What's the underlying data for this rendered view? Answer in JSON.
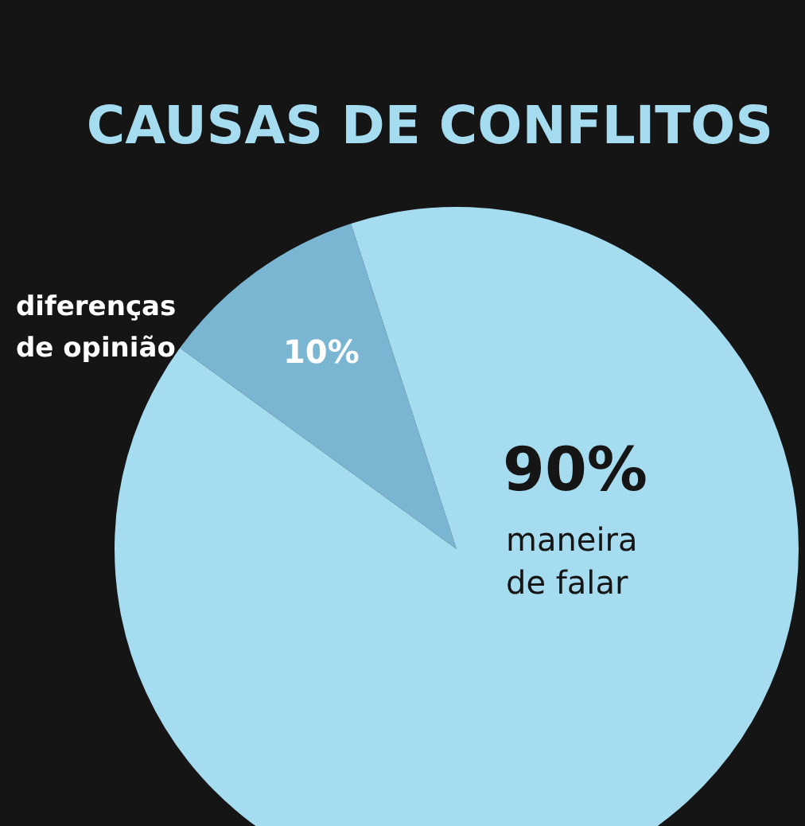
{
  "chart_data": {
    "type": "pie",
    "title": "CAUSAS DE CONFLITOS",
    "categories": [
      "diferenças de opinião",
      "maneira de falar"
    ],
    "values": [
      10,
      90
    ],
    "colors": [
      "#7ab6d2",
      "#a6dcef"
    ],
    "value_labels": [
      "10%",
      "90%"
    ]
  }
}
